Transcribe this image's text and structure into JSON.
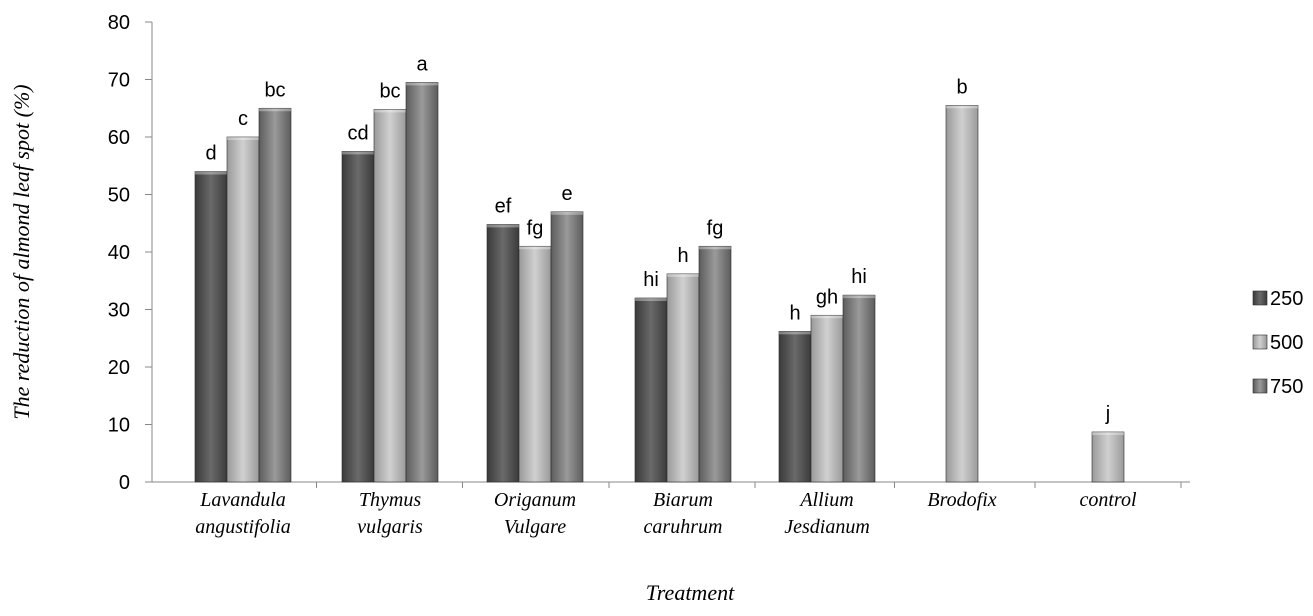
{
  "chart_data": {
    "type": "bar",
    "title": "",
    "xlabel": "Treatment",
    "ylabel": "The reduction of almond leaf spot (%)",
    "ylim": [
      0,
      80
    ],
    "yticks": [
      "0",
      "10",
      "20",
      "30",
      "40",
      "50",
      "60",
      "70",
      "80"
    ],
    "grid": false,
    "legend_position": "right",
    "categories": [
      [
        "Lavandula",
        "angustifolia"
      ],
      [
        "Thymus",
        "vulgaris"
      ],
      [
        "Origanum",
        "Vulgare"
      ],
      [
        "Biarum",
        "caruhrum"
      ],
      [
        "Allium",
        "Jesdianum"
      ],
      [
        "Brodofix"
      ],
      [
        "control"
      ]
    ],
    "series": [
      {
        "name": "250",
        "color": "#555555",
        "values": [
          54,
          57.5,
          44.8,
          32,
          26.2,
          null,
          null
        ],
        "labels": [
          "d",
          "cd",
          "ef",
          "hi",
          "h",
          "",
          ""
        ]
      },
      {
        "name": "500",
        "color": "#b8b8b8",
        "values": [
          60,
          64.8,
          41,
          36.2,
          29,
          65.5,
          8.7
        ],
        "labels": [
          "c",
          "bc",
          "fg",
          "h",
          "gh",
          "b",
          "j"
        ]
      },
      {
        "name": "750",
        "color": "#888888",
        "values": [
          65,
          69.5,
          47,
          41,
          32.5,
          null,
          null
        ],
        "labels": [
          "bc",
          "a",
          "e",
          "fg",
          "hi",
          "",
          ""
        ]
      }
    ]
  }
}
